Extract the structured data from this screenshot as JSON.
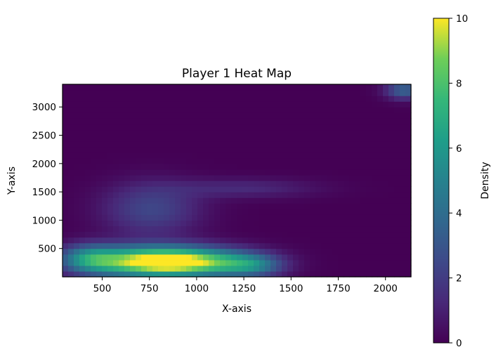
{
  "chart_data": {
    "type": "heatmap",
    "title": "Player 1 Heat Map",
    "xlabel": "X-axis",
    "ylabel": "Y-axis",
    "xlim": [
      290,
      2135
    ],
    "ylim": [
      0,
      3400
    ],
    "x_ticks": [
      "500",
      "750",
      "1000",
      "1250",
      "1500",
      "1750",
      "2000"
    ],
    "x_tick_values": [
      500,
      750,
      1000,
      1250,
      1500,
      1750,
      2000
    ],
    "y_ticks": [
      "500",
      "1000",
      "1500",
      "2000",
      "2500",
      "3000"
    ],
    "y_tick_values": [
      500,
      1000,
      1500,
      2000,
      2500,
      3000
    ],
    "colorbar": {
      "label": "Density",
      "range": [
        0,
        10
      ],
      "ticks": [
        "0",
        "2",
        "4",
        "6",
        "8",
        "10"
      ],
      "tick_values": [
        0,
        2,
        4,
        6,
        8,
        10
      ],
      "colormap": "viridis"
    },
    "grid": false,
    "hotspots": [
      {
        "x": 760,
        "y": 270,
        "sx": 230,
        "sy": 190,
        "value": 10
      },
      {
        "x": 1080,
        "y": 260,
        "sx": 200,
        "sy": 170,
        "value": 5.0
      },
      {
        "x": 430,
        "y": 330,
        "sx": 110,
        "sy": 170,
        "value": 4.2
      },
      {
        "x": 1300,
        "y": 200,
        "sx": 110,
        "sy": 140,
        "value": 3.2
      },
      {
        "x": 760,
        "y": 1200,
        "sx": 180,
        "sy": 330,
        "value": 2.4
      },
      {
        "x": 1250,
        "y": 1570,
        "sx": 270,
        "sy": 120,
        "value": 1.3
      },
      {
        "x": 2100,
        "y": 3300,
        "sx": 70,
        "sy": 110,
        "value": 3.6
      }
    ]
  }
}
